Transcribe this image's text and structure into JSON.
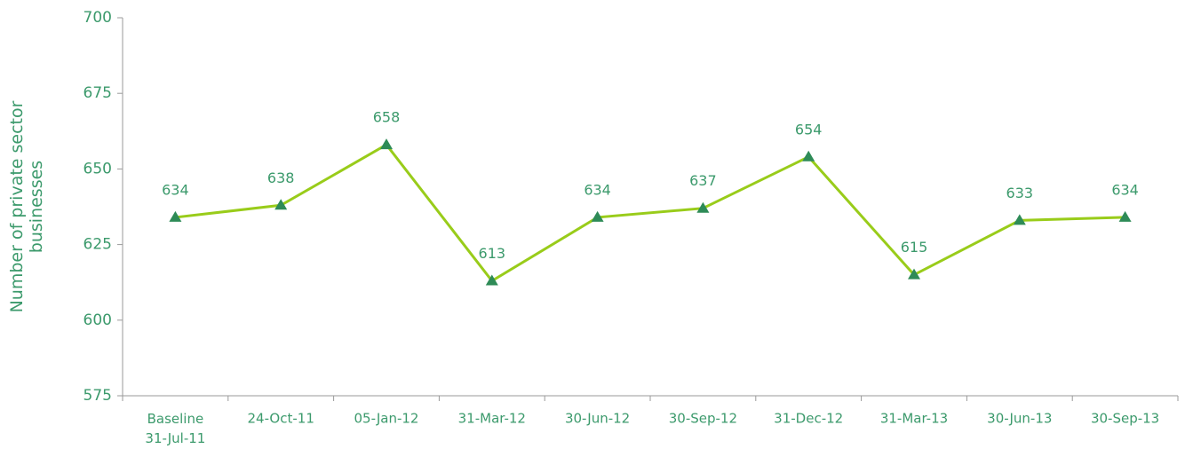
{
  "chart_data": {
    "type": "line",
    "y_label": "Number of private sector\nbusinesses",
    "categories": [
      "Baseline\n31-Jul-11",
      "24-Oct-11",
      "05-Jan-12",
      "31-Mar-12",
      "30-Jun-12",
      "30-Sep-12",
      "31-Dec-12",
      "31-Mar-13",
      "30-Jun-13",
      "30-Sep-13"
    ],
    "series": [
      {
        "color": "#99cc1a",
        "marker_color": "#2e8b57",
        "values": [
          634,
          638,
          658,
          613,
          634,
          637,
          654,
          615,
          633,
          634
        ]
      }
    ],
    "ylim": [
      575,
      700
    ],
    "yticks": [
      575,
      600,
      625,
      650,
      675,
      700
    ],
    "grid": false
  }
}
